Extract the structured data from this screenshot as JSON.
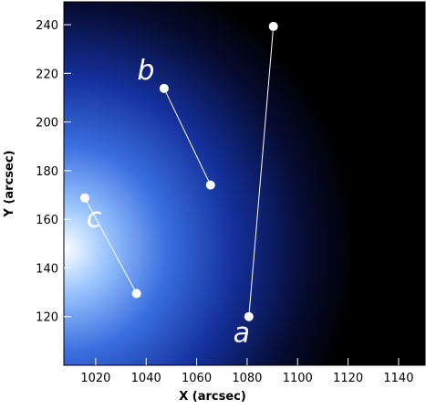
{
  "chart_data": {
    "type": "line",
    "xlabel": "X (arcsec)",
    "ylabel": "Y (arcsec)",
    "xlim": [
      1007.4,
      1150.5
    ],
    "ylim": [
      100,
      249.4
    ],
    "xticks": [
      1020,
      1040,
      1060,
      1080,
      1100,
      1120,
      1140
    ],
    "yticks": [
      120,
      140,
      160,
      180,
      200,
      220,
      240
    ],
    "series": [
      {
        "name": "a",
        "color": "#ffffff",
        "x": [
          1080.7,
          1090.4
        ],
        "values": [
          120,
          239.3
        ]
      },
      {
        "name": "b",
        "color": "#ffffff",
        "x": [
          1047.1,
          1065.5
        ],
        "values": [
          213.8,
          174.1
        ]
      },
      {
        "name": "c",
        "color": "#ffffff",
        "x": [
          1015.7,
          1036.2
        ],
        "values": [
          168.8,
          129.5
        ]
      }
    ]
  }
}
